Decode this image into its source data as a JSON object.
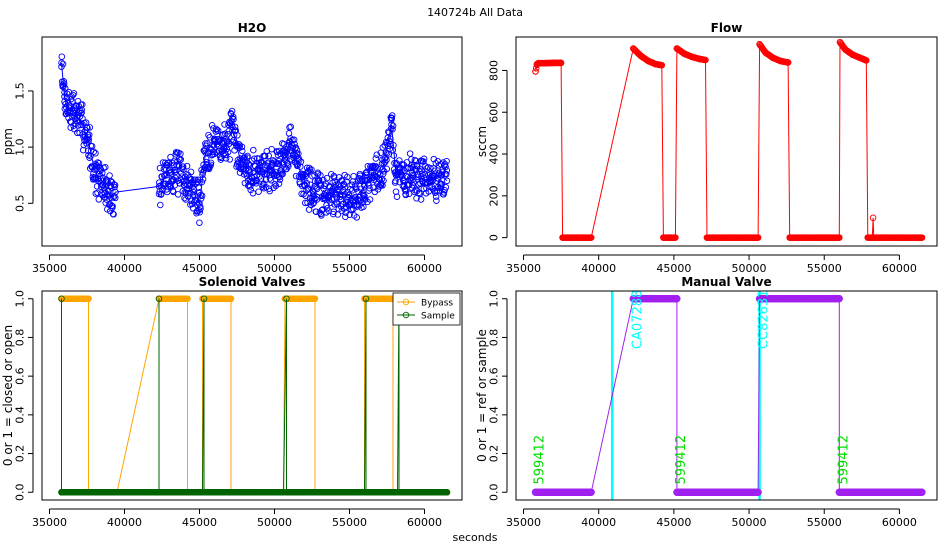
{
  "figure": {
    "supertitle": "140724b   All Data",
    "xlabel_common": "seconds"
  },
  "chart_data": [
    {
      "id": "h2o",
      "type": "scatter",
      "title": "H2O",
      "xlabel": "",
      "ylabel": "ppm",
      "xlim": [
        34500,
        62500
      ],
      "ylim": [
        0.12,
        1.98
      ],
      "xticks": [
        35000,
        40000,
        45000,
        50000,
        55000,
        60000
      ],
      "yticks": [
        0.5,
        1.0,
        1.5
      ],
      "ytick_labels": [
        "0.5",
        "1.0",
        "1.5"
      ],
      "color": "#0000ff",
      "marker": "open-circle",
      "series": [
        {
          "name": "H2O",
          "x": [
            35800,
            36000,
            36300,
            36700,
            37200,
            37600,
            38000,
            38300,
            38700,
            39100,
            39400,
            42300,
            42800,
            43400,
            44000,
            44600,
            45000,
            45400,
            46000,
            46600,
            47200,
            47700,
            48300,
            49000,
            49700,
            50300,
            50700,
            51000,
            51500,
            52000,
            52600,
            53300,
            54000,
            54700,
            55400,
            56000,
            56600,
            57200,
            57800,
            58100,
            58600,
            59200,
            59800,
            60400,
            61100,
            61500
          ],
          "y": [
            1.75,
            1.45,
            1.35,
            1.3,
            1.2,
            1.05,
            0.8,
            0.7,
            0.65,
            0.55,
            0.6,
            0.65,
            0.75,
            0.8,
            0.7,
            0.6,
            0.5,
            0.95,
            1.05,
            1.0,
            1.15,
            0.9,
            0.8,
            0.78,
            0.8,
            0.85,
            0.9,
            1.05,
            0.85,
            0.7,
            0.6,
            0.55,
            0.6,
            0.58,
            0.55,
            0.65,
            0.75,
            0.8,
            1.2,
            0.75,
            0.7,
            0.75,
            0.72,
            0.7,
            0.75,
            0.7
          ]
        }
      ]
    },
    {
      "id": "flow",
      "type": "scatter",
      "title": "Flow",
      "xlabel": "",
      "ylabel": "sccm",
      "xlim": [
        34500,
        62500
      ],
      "ylim": [
        -40,
        960
      ],
      "xticks": [
        35000,
        40000,
        45000,
        50000,
        55000,
        60000
      ],
      "yticks": [
        0,
        200,
        400,
        600,
        800
      ],
      "ytick_labels": [
        "0",
        "200",
        "400",
        "600",
        "800"
      ],
      "color": "#ff0000",
      "marker": "open-circle",
      "series": [
        {
          "name": "Flow",
          "x": [
            35800,
            35900,
            36000,
            36500,
            37000,
            37500,
            37600,
            38000,
            38500,
            39000,
            39500,
            42300,
            42800,
            43300,
            43800,
            44200,
            44300,
            44800,
            45100,
            45200,
            45700,
            46200,
            46700,
            47100,
            47200,
            48000,
            49000,
            50000,
            50600,
            50700,
            51100,
            51600,
            52100,
            52600,
            52700,
            53500,
            54500,
            55500,
            56000,
            56050,
            56400,
            56900,
            57400,
            57800,
            57900,
            58200,
            58250,
            58300,
            59000,
            60000,
            61000,
            61500
          ],
          "y": [
            795,
            830,
            835,
            835,
            836,
            836,
            0,
            0,
            0,
            0,
            0,
            905,
            870,
            845,
            830,
            825,
            0,
            0,
            0,
            905,
            880,
            865,
            855,
            850,
            0,
            0,
            0,
            0,
            0,
            925,
            885,
            860,
            845,
            838,
            0,
            0,
            0,
            0,
            0,
            935,
            900,
            875,
            860,
            848,
            0,
            0,
            95,
            0,
            0,
            0,
            0,
            0
          ]
        }
      ]
    },
    {
      "id": "solenoid",
      "type": "line",
      "title": "Solenoid Valves",
      "xlabel": "",
      "ylabel": "0 or 1 = closed or open",
      "xlim": [
        34500,
        62500
      ],
      "ylim": [
        -0.04,
        1.04
      ],
      "xticks": [
        35000,
        40000,
        45000,
        50000,
        55000,
        60000
      ],
      "yticks": [
        0.0,
        0.2,
        0.4,
        0.6,
        0.8,
        1.0
      ],
      "ytick_labels": [
        "0.0",
        "0.2",
        "0.4",
        "0.6",
        "0.8",
        "1.0"
      ],
      "legend": "top-right",
      "series": [
        {
          "name": "Bypass",
          "color": "#ffa500",
          "x": [
            35800,
            37600,
            37600,
            39500,
            42300,
            44200,
            44200,
            45200,
            45200,
            47100,
            47100,
            50600,
            50700,
            52700,
            52700,
            56000,
            56000,
            57900,
            57900,
            61500
          ],
          "y": [
            1,
            1,
            0,
            0,
            1,
            1,
            0,
            0,
            1,
            1,
            0,
            0,
            1,
            1,
            0,
            0,
            1,
            1,
            0,
            0
          ]
        },
        {
          "name": "Sample",
          "color": "#006400",
          "x": [
            35800,
            35800,
            35800,
            42300,
            42300,
            42300,
            44200,
            45200,
            45300,
            45300,
            47100,
            50600,
            50800,
            50800,
            52700,
            56000,
            56100,
            56100,
            57900,
            58200,
            58300,
            58300,
            61500
          ],
          "y": [
            0,
            1,
            0,
            0,
            1,
            0,
            0,
            0,
            1,
            0,
            0,
            0,
            1,
            0,
            0,
            0,
            1,
            0,
            0,
            0,
            1,
            0,
            0
          ]
        }
      ]
    },
    {
      "id": "manual",
      "type": "line",
      "title": "Manual Valve",
      "xlabel": "",
      "ylabel": "0 or 1 = ref or sample",
      "xlim": [
        34500,
        62500
      ],
      "ylim": [
        -0.04,
        1.04
      ],
      "xticks": [
        35000,
        40000,
        45000,
        50000,
        55000,
        60000
      ],
      "yticks": [
        0.0,
        0.2,
        0.4,
        0.6,
        0.8,
        1.0
      ],
      "ytick_labels": [
        "0.0",
        "0.2",
        "0.4",
        "0.6",
        "0.8",
        "1.0"
      ],
      "series": [
        {
          "name": "Manual",
          "color": "#a020f0",
          "x": [
            35800,
            39500,
            42300,
            45200,
            45200,
            50600,
            50700,
            56000,
            56000,
            61500
          ],
          "y": [
            0,
            0,
            1,
            1,
            0,
            0,
            1,
            1,
            0,
            0
          ]
        }
      ],
      "vlines": [
        {
          "x": 40900,
          "color": "#00ffff"
        },
        {
          "x": 50700,
          "color": "#00ffff"
        }
      ],
      "annotations": [
        {
          "text": "599412",
          "x": 36100,
          "y": 0.04,
          "color": "#00dd00"
        },
        {
          "text": "CA07288",
          "x": 42600,
          "y": 0.74,
          "color": "#00ffff"
        },
        {
          "text": "599412",
          "x": 45500,
          "y": 0.04,
          "color": "#00dd00"
        },
        {
          "text": "CC82631",
          "x": 51000,
          "y": 0.74,
          "color": "#00ffff"
        },
        {
          "text": "599412",
          "x": 56300,
          "y": 0.04,
          "color": "#00dd00"
        }
      ]
    }
  ]
}
